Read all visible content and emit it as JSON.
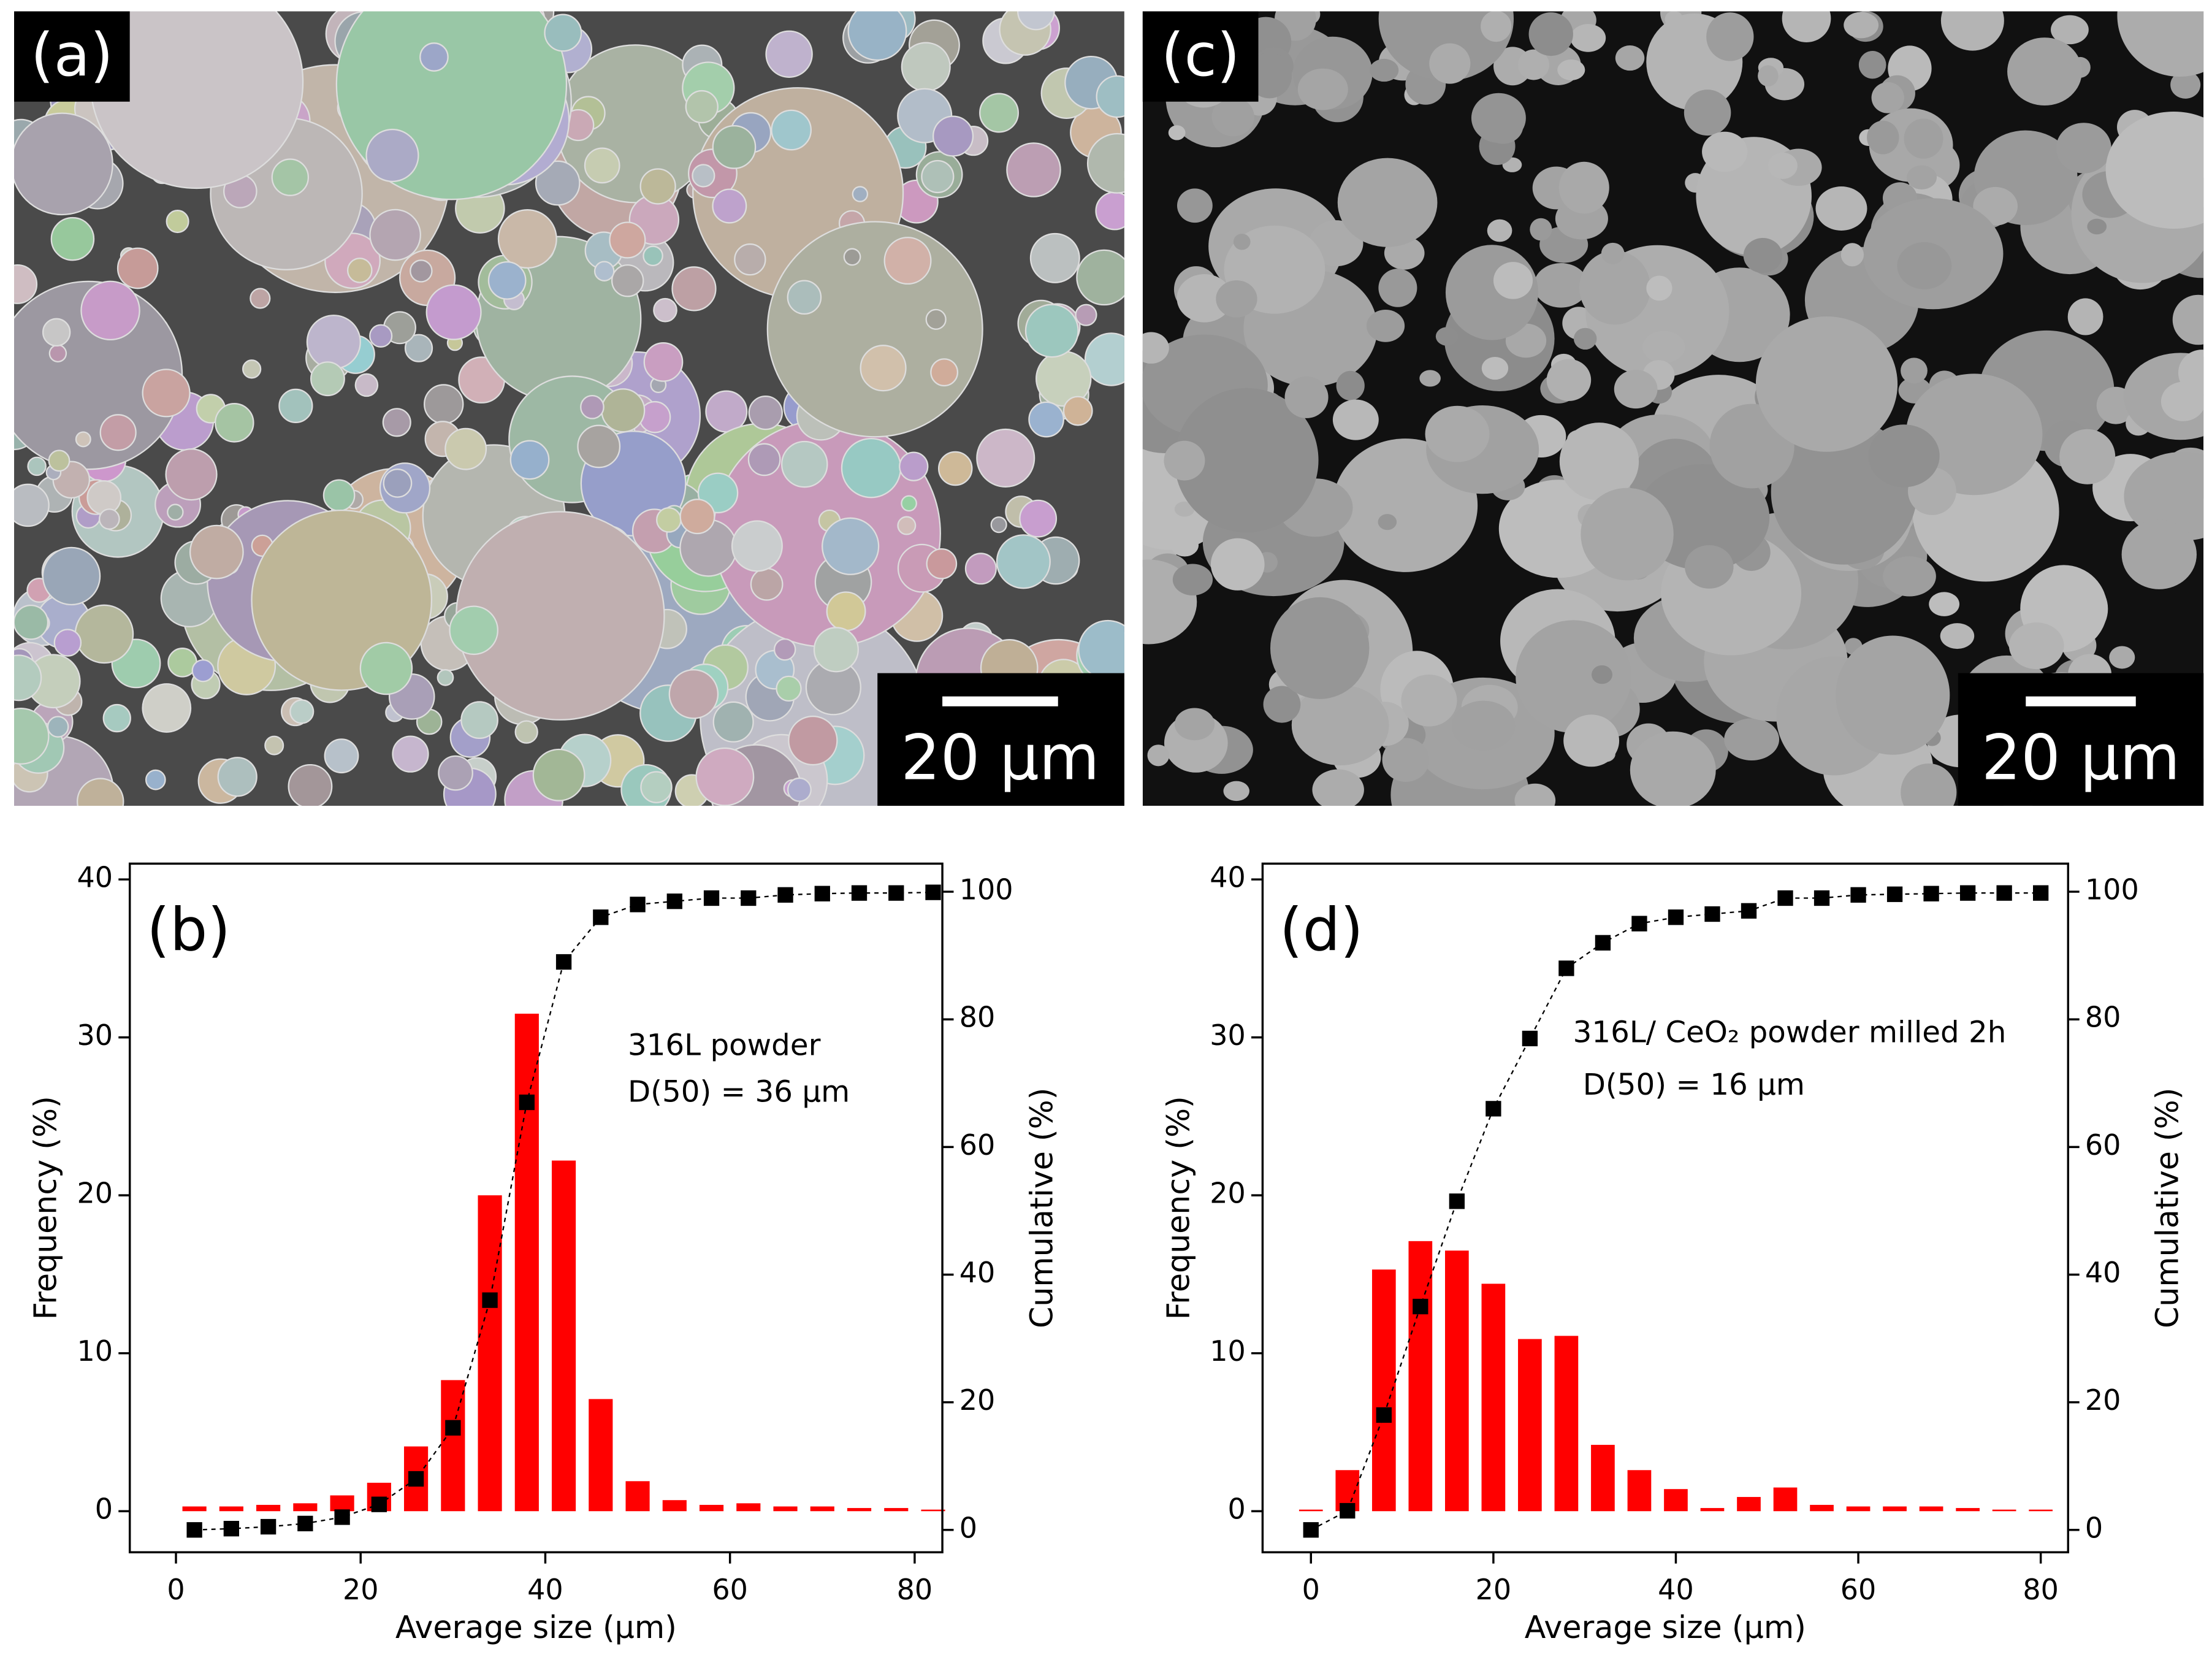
{
  "panels": {
    "a": {
      "label": "(a)",
      "scale_bar": "20 µm"
    },
    "c": {
      "label": "(c)",
      "scale_bar": "20 µm"
    }
  },
  "chart_data": [
    {
      "type": "bar",
      "panel_label": "(b)",
      "xlabel": "Average size (µm)",
      "ylabel": "Frequency (%)",
      "y2label": "Cumulative (%)",
      "annotations": [
        "316L powder",
        "D(50) = 36 µm"
      ],
      "x": [
        2,
        6,
        10,
        14,
        18,
        22,
        26,
        30,
        34,
        38,
        42,
        46,
        50,
        54,
        58,
        62,
        66,
        70,
        74,
        78,
        82
      ],
      "series": [
        {
          "color": "#ff0000",
          "values": [
            0.3,
            0.3,
            0.4,
            0.5,
            1.0,
            1.8,
            4.1,
            8.3,
            20.0,
            31.5,
            22.2,
            7.1,
            1.9,
            0.7,
            0.4,
            0.5,
            0.3,
            0.3,
            0.2,
            0.2,
            0.1
          ]
        },
        {
          "type": "line",
          "axis": "y2",
          "color": "#000000",
          "values": [
            0,
            0.2,
            0.5,
            1,
            2,
            4,
            8,
            16,
            36,
            67,
            89,
            96,
            98,
            98.5,
            99,
            99,
            99.5,
            99.7,
            99.8,
            99.8,
            99.9
          ]
        }
      ],
      "xlim": [
        -5,
        83
      ],
      "xticks": [
        0,
        20,
        40,
        60,
        80
      ],
      "ylim": [
        -2.6,
        41
      ],
      "yticks": [
        0,
        10,
        20,
        30,
        40
      ],
      "y2lim": [
        -3.5,
        104.4
      ],
      "y2ticks": [
        0,
        20,
        40,
        60,
        80,
        100
      ]
    },
    {
      "type": "bar",
      "panel_label": "(d)",
      "xlabel": "Average size (µm)",
      "ylabel": "Frequency (%)",
      "y2label": "Cumulative (%)",
      "annotations": [
        "316L/ CeO₂ powder milled 2h",
        "D(50) = 16 µm"
      ],
      "x": [
        0,
        4,
        8,
        12,
        16,
        20,
        24,
        28,
        32,
        36,
        40,
        44,
        48,
        52,
        56,
        60,
        64,
        68,
        72,
        76,
        80
      ],
      "series": [
        {
          "color": "#ff0000",
          "values": [
            0.1,
            2.6,
            15.3,
            17.1,
            16.5,
            14.4,
            10.9,
            11.1,
            4.2,
            2.6,
            1.4,
            0.2,
            0.9,
            1.5,
            0.4,
            0.3,
            0.3,
            0.3,
            0.2,
            0.1,
            0.1
          ]
        },
        {
          "type": "line",
          "axis": "y2",
          "color": "#000000",
          "values": [
            0,
            3,
            18,
            35,
            51.5,
            66,
            77,
            88,
            92,
            95,
            96,
            96.5,
            97,
            99,
            99,
            99.5,
            99.6,
            99.7,
            99.8,
            99.8,
            99.8
          ]
        }
      ],
      "xlim": [
        -5.3,
        83
      ],
      "xticks": [
        0,
        20,
        40,
        60,
        80
      ],
      "ylim": [
        -2.6,
        41
      ],
      "yticks": [
        0,
        10,
        20,
        30,
        40
      ],
      "y2lim": [
        -3.5,
        104.4
      ],
      "y2ticks": [
        0,
        20,
        40,
        60,
        80,
        100
      ]
    }
  ]
}
